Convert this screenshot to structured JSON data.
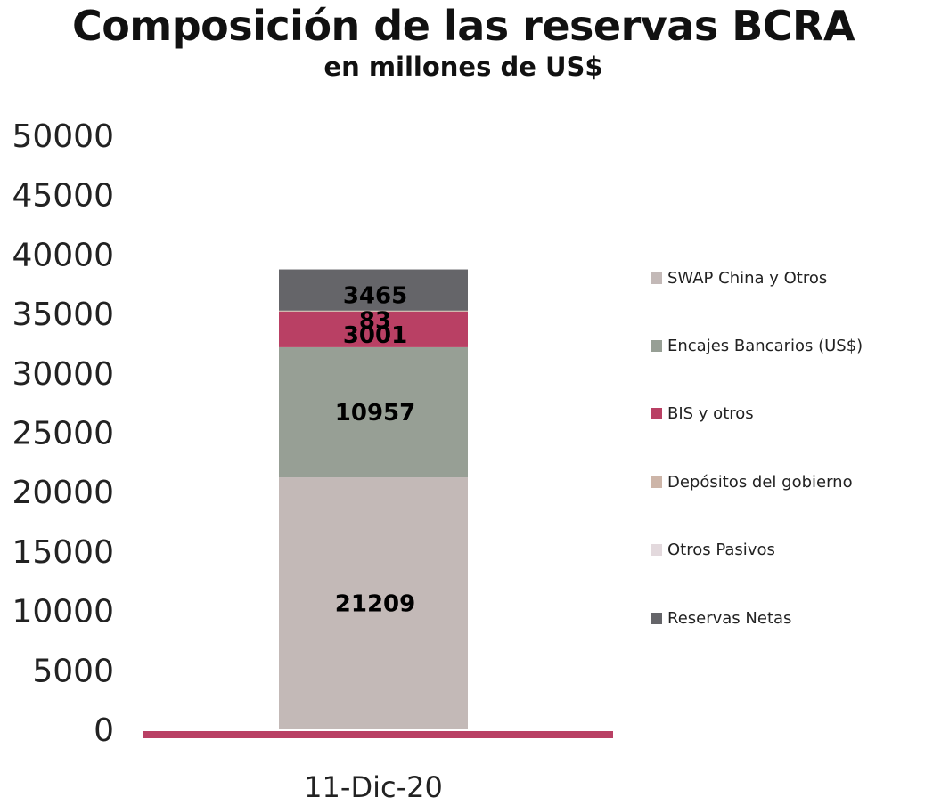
{
  "chart_data": {
    "type": "bar",
    "stacked": true,
    "title": "Composición de las reservas BCRA",
    "subtitle": "en millones de US$",
    "categories": [
      "11-Dic-20"
    ],
    "ylim": [
      0,
      50000
    ],
    "yticks": [
      "0",
      "5000",
      "10000",
      "15000",
      "20000",
      "25000",
      "30000",
      "35000",
      "40000",
      "45000",
      "50000"
    ],
    "series": [
      {
        "name": "SWAP China y Otros",
        "values": [
          21209
        ],
        "color": "#c3b9b7",
        "label": "21209"
      },
      {
        "name": "Encajes Bancarios (US$)",
        "values": [
          10957
        ],
        "color": "#979f95",
        "label": "10957"
      },
      {
        "name": "BIS y otros",
        "values": [
          3001
        ],
        "color": "#b94064",
        "label": "3001"
      },
      {
        "name": "Depósitos del gobierno",
        "values": [
          83
        ],
        "color": "#cdb5a8",
        "label": "83"
      },
      {
        "name": "Otros Pasivos",
        "values": [
          0
        ],
        "color": "#e3d9dd",
        "label": ""
      },
      {
        "name": "Reservas Netas",
        "values": [
          3465
        ],
        "color": "#656569",
        "label": "3465"
      }
    ],
    "legend_position": "right",
    "grid": false
  }
}
